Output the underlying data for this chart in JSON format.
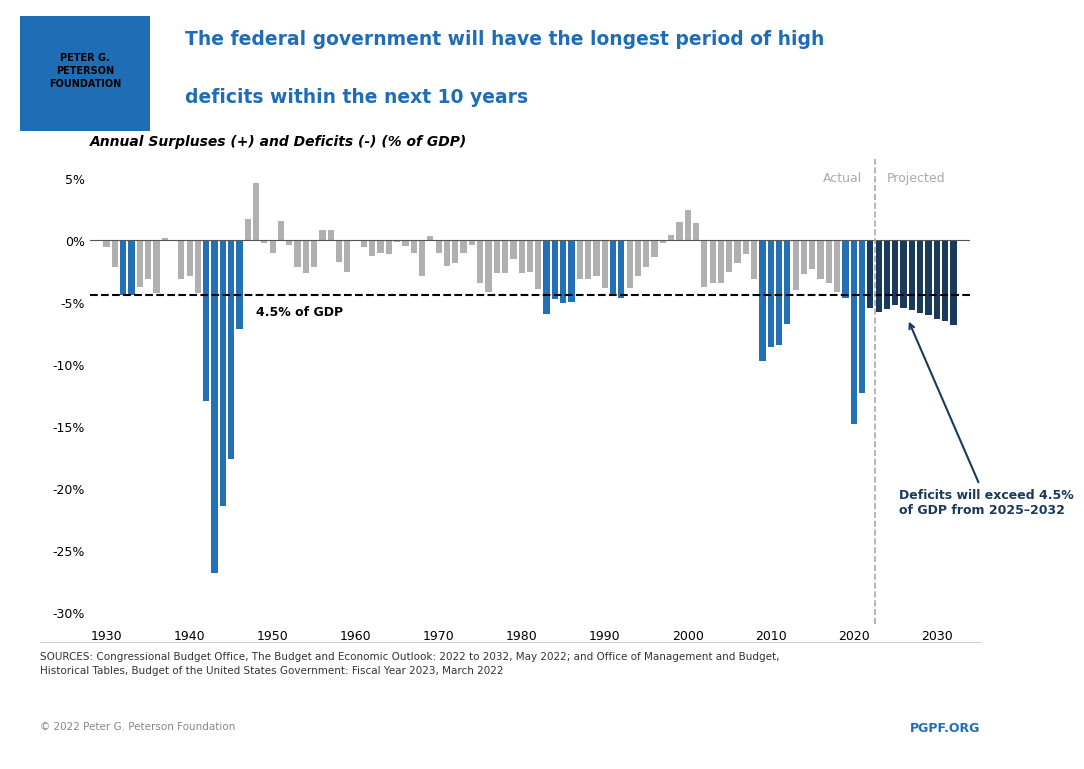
{
  "title_line1": "The federal government will have the longest period of high",
  "title_line2": "deficits within the next 10 years",
  "title_color": "#1f6eb5",
  "chart_subtitle": "Annual Surpluses (+) and Deficits (-) (% of GDP)",
  "threshold": -4.5,
  "threshold_label": "4.5% of GDP",
  "annotation_text": "Deficits will exceed 4.5%\nof GDP from 2025–2032",
  "actual_label": "Actual",
  "projected_label": "Projected",
  "projection_start": 2022,
  "dashed_line_year": 2022,
  "source_text": "SOURCES: Congressional Budget Office, The Budget and Economic Outlook: 2022 to 2032, May 2022; and Office of Management and Budget,\nHistorical Tables, Budget of the United States Government: Fiscal Year 2023, March 2022",
  "copyright_text": "© 2022 Peter G. Peterson Foundation",
  "pgpf_text": "PGPF.ORG",
  "pgpf_color": "#1f6eb5",
  "ylim": [
    -31,
    6.5
  ],
  "yticks": [
    5,
    0,
    -5,
    -10,
    -15,
    -20,
    -25,
    -30
  ],
  "ytick_labels": [
    "5%",
    "0%",
    "-5%",
    "-10%",
    "-15%",
    "-20%",
    "-25%",
    "-30%"
  ],
  "xticks": [
    1930,
    1940,
    1950,
    1960,
    1970,
    1980,
    1990,
    2000,
    2010,
    2020,
    2030
  ],
  "years": [
    1930,
    1931,
    1932,
    1933,
    1934,
    1935,
    1936,
    1937,
    1938,
    1939,
    1940,
    1941,
    1942,
    1943,
    1944,
    1945,
    1946,
    1947,
    1948,
    1949,
    1950,
    1951,
    1952,
    1953,
    1954,
    1955,
    1956,
    1957,
    1958,
    1959,
    1960,
    1961,
    1962,
    1963,
    1964,
    1965,
    1966,
    1967,
    1968,
    1969,
    1970,
    1971,
    1972,
    1973,
    1974,
    1975,
    1976,
    1977,
    1978,
    1979,
    1980,
    1981,
    1982,
    1983,
    1984,
    1985,
    1986,
    1987,
    1988,
    1989,
    1990,
    1991,
    1992,
    1993,
    1994,
    1995,
    1996,
    1997,
    1998,
    1999,
    2000,
    2001,
    2002,
    2003,
    2004,
    2005,
    2006,
    2007,
    2008,
    2009,
    2010,
    2011,
    2012,
    2013,
    2014,
    2015,
    2016,
    2017,
    2018,
    2019,
    2020,
    2021,
    2022,
    2023,
    2024,
    2025,
    2026,
    2027,
    2028,
    2029,
    2030,
    2031,
    2032
  ],
  "values": [
    -0.6,
    -2.2,
    -4.5,
    -4.5,
    -3.8,
    -3.2,
    -4.3,
    0.1,
    -0.1,
    -3.2,
    -2.9,
    -4.3,
    -13.0,
    -26.9,
    -21.5,
    -17.7,
    -7.2,
    1.7,
    4.6,
    -0.3,
    -1.1,
    1.5,
    -0.4,
    -2.2,
    -2.7,
    -2.2,
    0.8,
    0.8,
    -1.8,
    -2.6,
    -0.1,
    -0.6,
    -1.3,
    -1.1,
    -1.2,
    -0.2,
    -0.5,
    -1.1,
    -2.9,
    0.3,
    -1.1,
    -2.1,
    -1.9,
    -1.1,
    -0.4,
    -3.5,
    -4.2,
    -2.7,
    -2.7,
    -1.6,
    -2.7,
    -2.6,
    -4.0,
    -6.0,
    -4.8,
    -5.1,
    -5.0,
    -3.2,
    -3.2,
    -2.9,
    -3.9,
    -4.5,
    -4.7,
    -3.9,
    -2.9,
    -2.2,
    -1.4,
    -0.3,
    0.4,
    1.4,
    2.4,
    1.3,
    -3.8,
    -3.5,
    -3.5,
    -2.6,
    -1.9,
    -1.2,
    -3.2,
    -9.8,
    -8.7,
    -8.5,
    -6.8,
    -4.1,
    -2.8,
    -2.4,
    -3.2,
    -3.5,
    -4.2,
    -4.7,
    -14.9,
    -12.4,
    -5.5,
    -5.8,
    -5.6,
    -5.3,
    -5.5,
    -5.7,
    -5.9,
    -6.1,
    -6.4,
    -6.6,
    -6.9
  ],
  "color_high_deficit_actual": "#2470b5",
  "color_normal_actual": "#b0b0b0",
  "color_projected": "#1a3a5c",
  "color_high_deficit_projected": "#2470b5"
}
